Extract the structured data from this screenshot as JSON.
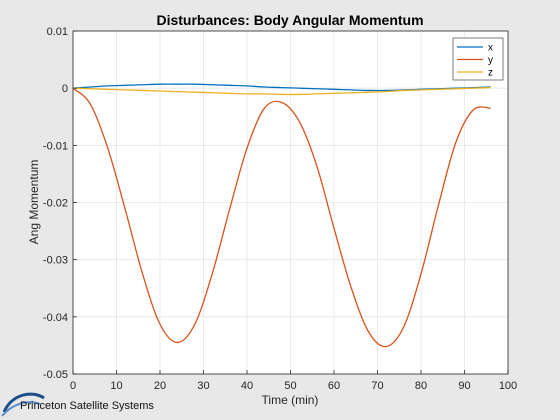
{
  "branding": {
    "text": "Princeton Satellite Systems"
  },
  "chart_data": {
    "type": "line",
    "title": "Disturbances: Body Angular Momentum",
    "xlabel": "Time (min)",
    "ylabel": "Ang Momentum",
    "xlim": [
      0,
      100
    ],
    "ylim": [
      -0.05,
      0.01
    ],
    "xticks": [
      "0",
      "10",
      "20",
      "30",
      "40",
      "50",
      "60",
      "70",
      "80",
      "90",
      "100"
    ],
    "yticks": [
      "0.01",
      "0",
      "-0.01",
      "-0.02",
      "-0.03",
      "-0.04",
      "-0.05"
    ],
    "grid": true,
    "legend_position": "top-right",
    "x": [
      0,
      4,
      8,
      12,
      16,
      20,
      24,
      28,
      32,
      36,
      40,
      44,
      48,
      52,
      56,
      60,
      64,
      68,
      72,
      76,
      80,
      84,
      88,
      92,
      96
    ],
    "series": [
      {
        "name": "x",
        "color": "#0072BD",
        "values": [
          0,
          0.0002,
          0.0004,
          0.0005,
          0.0006,
          0.0007,
          0.0007,
          0.0007,
          0.0006,
          0.0005,
          0.0004,
          0.0002,
          0.0001,
          0,
          -0.0001,
          -0.0002,
          -0.0003,
          -0.0004,
          -0.0004,
          -0.0003,
          -0.0002,
          -0.0001,
          0,
          0.0001,
          0.0002
        ]
      },
      {
        "name": "y",
        "color": "#D95319",
        "values": [
          0,
          -0.0028,
          -0.0105,
          -0.0212,
          -0.0325,
          -0.0413,
          -0.0445,
          -0.0413,
          -0.0325,
          -0.0212,
          -0.0105,
          -0.0035,
          -0.0025,
          -0.0058,
          -0.0135,
          -0.0245,
          -0.035,
          -0.0427,
          -0.0452,
          -0.0418,
          -0.0325,
          -0.0205,
          -0.0095,
          -0.0038,
          -0.0035
        ]
      },
      {
        "name": "z",
        "color": "#EDB120",
        "values": [
          0,
          -0.0001,
          -0.0002,
          -0.0003,
          -0.0004,
          -0.0005,
          -0.0006,
          -0.0007,
          -0.0008,
          -0.0009,
          -0.001,
          -0.001,
          -0.0011,
          -0.0011,
          -0.001,
          -0.0009,
          -0.0008,
          -0.0007,
          -0.0006,
          -0.0004,
          -0.0003,
          -0.0002,
          -0.0001,
          0,
          0.0001
        ]
      }
    ]
  }
}
